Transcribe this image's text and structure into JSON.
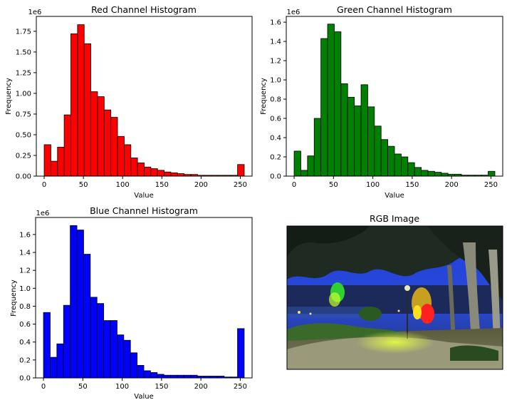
{
  "chart_data": [
    {
      "type": "bar",
      "title": "Red Channel Histogram",
      "xlabel": "Value",
      "ylabel": "Frequency",
      "offset_label": "1e6",
      "color": "#ff0000",
      "xlim": [
        -10,
        265
      ],
      "ylim": [
        0,
        1.93
      ],
      "xticks": [
        0,
        50,
        100,
        150,
        200,
        250
      ],
      "yticks": [
        "0.00",
        "0.25",
        "0.50",
        "0.75",
        "1.00",
        "1.25",
        "1.50",
        "1.75"
      ],
      "bin_width": 8.5,
      "values": [
        0.38,
        0.18,
        0.35,
        0.74,
        1.72,
        1.83,
        1.6,
        1.02,
        0.96,
        0.8,
        0.71,
        0.48,
        0.38,
        0.22,
        0.16,
        0.11,
        0.09,
        0.07,
        0.05,
        0.04,
        0.03,
        0.02,
        0.02,
        0.01,
        0.01,
        0.01,
        0.01,
        0.01,
        0.01,
        0.14
      ]
    },
    {
      "type": "bar",
      "title": "Green Channel Histogram",
      "xlabel": "Value",
      "ylabel": "Frequency",
      "offset_label": "1e6",
      "color": "#008000",
      "xlim": [
        -10,
        265
      ],
      "ylim": [
        0,
        1.66
      ],
      "xticks": [
        0,
        50,
        100,
        150,
        200,
        250
      ],
      "yticks": [
        "0.0",
        "0.2",
        "0.4",
        "0.6",
        "0.8",
        "1.0",
        "1.2",
        "1.4",
        "1.6"
      ],
      "bin_width": 8.5,
      "values": [
        0.26,
        0.06,
        0.21,
        0.6,
        1.43,
        1.58,
        1.5,
        0.96,
        0.82,
        0.73,
        0.95,
        0.72,
        0.52,
        0.38,
        0.31,
        0.23,
        0.2,
        0.14,
        0.09,
        0.06,
        0.05,
        0.04,
        0.03,
        0.02,
        0.02,
        0.01,
        0.01,
        0.01,
        0.01,
        0.05
      ]
    },
    {
      "type": "bar",
      "title": "Blue Channel Histogram",
      "xlabel": "Value",
      "ylabel": "Frequency",
      "offset_label": "1e6",
      "color": "#0000ff",
      "xlim": [
        -10,
        265
      ],
      "ylim": [
        0,
        1.79
      ],
      "xticks": [
        0,
        50,
        100,
        150,
        200,
        250
      ],
      "yticks": [
        "0.0",
        "0.2",
        "0.4",
        "0.6",
        "0.8",
        "1.0",
        "1.2",
        "1.4",
        "1.6"
      ],
      "bin_width": 8.5,
      "values": [
        0.73,
        0.23,
        0.38,
        0.81,
        1.7,
        1.65,
        1.38,
        0.9,
        0.83,
        0.64,
        0.64,
        0.48,
        0.42,
        0.28,
        0.14,
        0.08,
        0.06,
        0.04,
        0.03,
        0.03,
        0.03,
        0.03,
        0.03,
        0.02,
        0.02,
        0.02,
        0.02,
        0.01,
        0.01,
        0.55
      ]
    }
  ],
  "image_panel": {
    "title": "RGB Image",
    "depicts": "photo-of-illuminated-park-walkway-at-night"
  }
}
